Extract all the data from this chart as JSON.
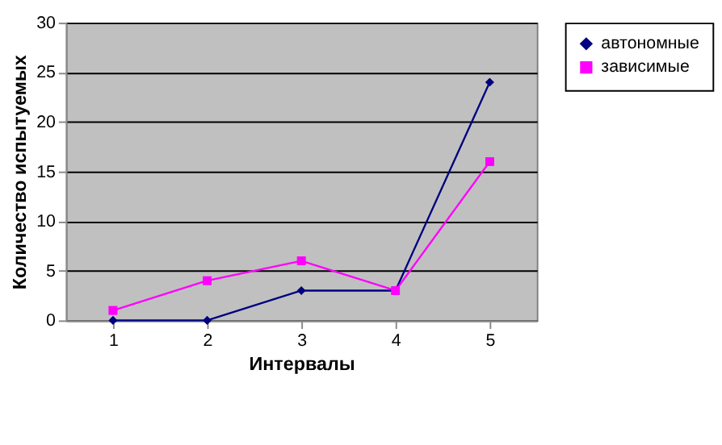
{
  "chart_data": {
    "type": "line",
    "xlabel": "Интервалы",
    "ylabel": "Количество испытуемых",
    "categories": [
      "1",
      "2",
      "3",
      "4",
      "5"
    ],
    "series": [
      {
        "name": "автономные",
        "color": "#000080",
        "marker": "diamond",
        "values": [
          0,
          0,
          3,
          3,
          24
        ]
      },
      {
        "name": "зависимые",
        "color": "#ff00ff",
        "marker": "square",
        "values": [
          1,
          4,
          6,
          3,
          16
        ]
      }
    ],
    "ylim": [
      0,
      30
    ],
    "yticks": [
      0,
      5,
      10,
      15,
      20,
      25,
      30
    ],
    "grid": "y",
    "legend": "right"
  }
}
